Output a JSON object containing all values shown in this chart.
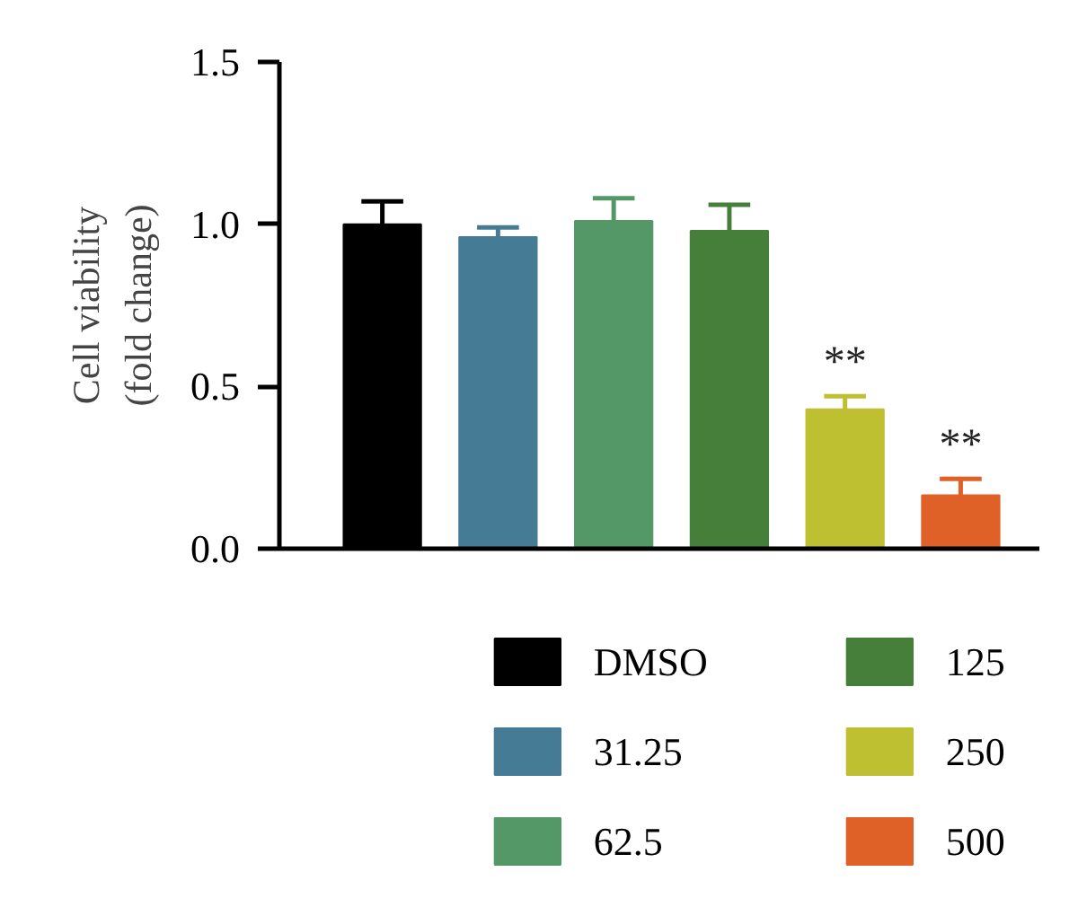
{
  "chart_data": {
    "type": "bar",
    "ylabel": "Cell viability\n(fold change)",
    "categories": [
      null,
      null,
      null,
      null,
      null,
      null
    ],
    "series": [
      {
        "name": "DMSO",
        "color": "#000000",
        "values": [
          1.0,
          null,
          null,
          null,
          null,
          null
        ],
        "errors": [
          0.07,
          null,
          null,
          null,
          null,
          null
        ]
      },
      {
        "name": "31.25",
        "color": "#467b95",
        "values": [
          null,
          0.96,
          null,
          null,
          null,
          null
        ],
        "errors": [
          null,
          0.03,
          null,
          null,
          null,
          null
        ]
      },
      {
        "name": "62.5",
        "color": "#559868",
        "values": [
          null,
          null,
          1.01,
          null,
          null,
          null
        ],
        "errors": [
          null,
          null,
          0.07,
          null,
          null,
          null
        ]
      },
      {
        "name": "125",
        "color": "#467f3a",
        "values": [
          null,
          null,
          null,
          0.98,
          null,
          null
        ],
        "errors": [
          null,
          null,
          null,
          0.08,
          null,
          null
        ]
      },
      {
        "name": "250",
        "color": "#bfbf32",
        "values": [
          null,
          null,
          null,
          null,
          0.43,
          null
        ],
        "errors": [
          null,
          null,
          null,
          null,
          0.04,
          null
        ],
        "value_labels": [
          null,
          null,
          null,
          null,
          "**",
          null
        ]
      },
      {
        "name": "500",
        "color": "#e06127",
        "values": [
          null,
          null,
          null,
          null,
          null,
          0.165
        ],
        "errors": [
          null,
          null,
          null,
          null,
          null,
          0.05
        ],
        "value_labels": [
          null,
          null,
          null,
          null,
          null,
          "**"
        ]
      }
    ],
    "ylim": [
      0,
      1.5
    ],
    "yticks": [
      {
        "value": 0,
        "label": "0.0"
      },
      {
        "value": 0.5,
        "label": "0.5"
      },
      {
        "value": 1,
        "label": "1.0"
      },
      {
        "value": 1.5,
        "label": "1.5"
      }
    ],
    "grid": false,
    "legend": "bottom",
    "tick_labels": "y"
  }
}
